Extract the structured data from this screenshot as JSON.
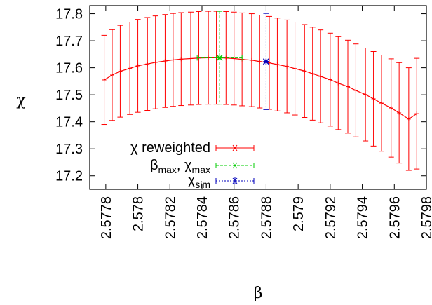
{
  "chart_data": {
    "type": "line",
    "xlabel": "β",
    "ylabel": "χ",
    "xlim": [
      2.5777,
      2.5798
    ],
    "ylim": [
      17.15,
      17.83
    ],
    "xticks": [
      "2.5778",
      "2.578",
      "2.5782",
      "2.5784",
      "2.5786",
      "2.5788",
      "2.579",
      "2.5792",
      "2.5794",
      "2.5796",
      "2.5798"
    ],
    "yticks": [
      "17.2",
      "17.3",
      "17.4",
      "17.5",
      "17.6",
      "17.7",
      "17.8"
    ],
    "grid": false,
    "legend_position": "bottom-left",
    "colors": {
      "reweighted": "#ff0000",
      "max": "#00cc00",
      "sim": "#0000bb"
    },
    "series": [
      {
        "name": "χ reweighted",
        "style": "line-errorbars",
        "x": [
          2.57779,
          2.57784,
          2.57789,
          2.57795,
          2.578,
          2.57806,
          2.57811,
          2.57817,
          2.57822,
          2.57827,
          2.57833,
          2.57838,
          2.57844,
          2.57849,
          2.57855,
          2.5786,
          2.57865,
          2.57871,
          2.57876,
          2.57882,
          2.57887,
          2.57893,
          2.57898,
          2.57904,
          2.57909,
          2.57914,
          2.5792,
          2.57925,
          2.57931,
          2.57936,
          2.57942,
          2.57947,
          2.57952,
          2.57958,
          2.57963,
          2.57969,
          2.57974
        ],
        "y": [
          17.555,
          17.573,
          17.587,
          17.598,
          17.607,
          17.614,
          17.62,
          17.625,
          17.629,
          17.632,
          17.634,
          17.636,
          17.637,
          17.637,
          17.636,
          17.634,
          17.631,
          17.628,
          17.623,
          17.618,
          17.612,
          17.605,
          17.597,
          17.588,
          17.578,
          17.568,
          17.556,
          17.543,
          17.53,
          17.516,
          17.501,
          17.485,
          17.469,
          17.451,
          17.433,
          17.41,
          17.43
        ],
        "yerr": [
          0.165,
          0.168,
          0.17,
          0.171,
          0.172,
          0.172,
          0.172,
          0.172,
          0.172,
          0.172,
          0.172,
          0.172,
          0.172,
          0.172,
          0.172,
          0.172,
          0.172,
          0.172,
          0.172,
          0.172,
          0.172,
          0.172,
          0.172,
          0.172,
          0.172,
          0.172,
          0.172,
          0.172,
          0.172,
          0.172,
          0.172,
          0.175,
          0.178,
          0.182,
          0.186,
          0.19,
          0.205
        ]
      },
      {
        "name": "βmax, χmax",
        "style": "point-errorbars-xy",
        "x": [
          2.57851
        ],
        "y": [
          17.637
        ],
        "yerr": [
          0.172
        ],
        "xerr": [
          0.00014
        ]
      },
      {
        "name": "χsim",
        "style": "point-errorbars",
        "x": [
          2.5788
        ],
        "y": [
          17.623
        ],
        "yerr": [
          0.178
        ]
      }
    ]
  },
  "legend": {
    "reweighted_label": "χ reweighted",
    "max_label_beta": "β",
    "max_label_beta_sub": "max",
    "max_label_sep": ", χ",
    "max_label_chi_sub": "max",
    "sim_label": "χ",
    "sim_label_sub": "sim"
  }
}
